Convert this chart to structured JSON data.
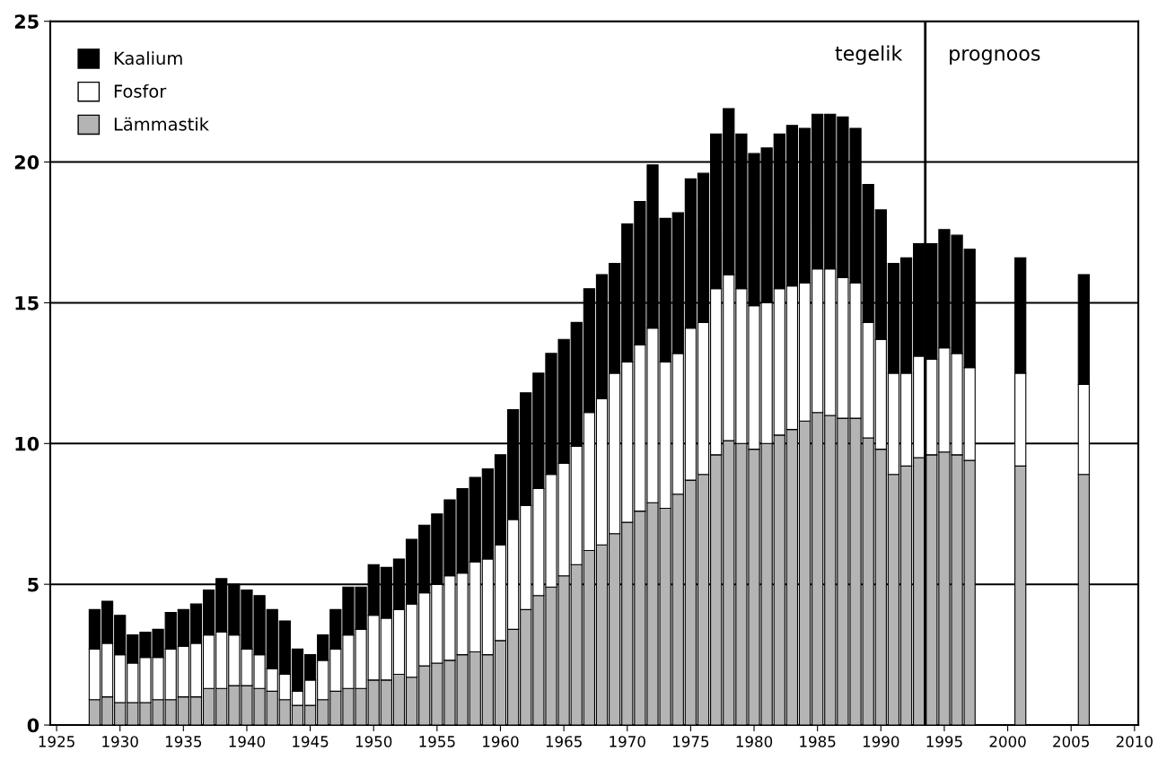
{
  "chart_data": {
    "type": "bar",
    "stacked": true,
    "x": [
      1928,
      1929,
      1930,
      1931,
      1932,
      1933,
      1934,
      1935,
      1936,
      1937,
      1938,
      1939,
      1940,
      1941,
      1942,
      1943,
      1944,
      1945,
      1946,
      1947,
      1948,
      1949,
      1950,
      1951,
      1952,
      1953,
      1954,
      1955,
      1956,
      1957,
      1958,
      1959,
      1960,
      1961,
      1962,
      1963,
      1964,
      1965,
      1966,
      1967,
      1968,
      1969,
      1970,
      1971,
      1972,
      1973,
      1974,
      1975,
      1976,
      1977,
      1978,
      1979,
      1980,
      1981,
      1982,
      1983,
      1984,
      1985,
      1986,
      1987,
      1988,
      1989,
      1990,
      1991,
      1992,
      1993,
      1994,
      1995,
      1996,
      1997,
      2001,
      2006
    ],
    "series": [
      {
        "name": "Lämmastik",
        "color": "#b4b4b4",
        "values": [
          0.9,
          1.0,
          0.8,
          0.8,
          0.8,
          0.9,
          0.9,
          1.0,
          1.0,
          1.3,
          1.3,
          1.4,
          1.4,
          1.3,
          1.2,
          0.9,
          0.7,
          0.7,
          0.9,
          1.2,
          1.3,
          1.3,
          1.6,
          1.6,
          1.8,
          1.7,
          2.1,
          2.2,
          2.3,
          2.5,
          2.6,
          2.5,
          3.0,
          3.4,
          4.1,
          4.6,
          4.9,
          5.3,
          5.7,
          6.2,
          6.4,
          6.8,
          7.2,
          7.6,
          7.9,
          7.7,
          8.2,
          8.7,
          8.9,
          9.6,
          10.1,
          10.0,
          9.8,
          10.0,
          10.3,
          10.5,
          10.8,
          11.1,
          11.0,
          10.9,
          10.9,
          10.2,
          9.8,
          8.9,
          9.2,
          9.5,
          9.6,
          9.7,
          9.6,
          9.4,
          9.2,
          8.9
        ]
      },
      {
        "name": "Fosfor",
        "color": "#ffffff",
        "values": [
          1.8,
          1.9,
          1.7,
          1.4,
          1.6,
          1.5,
          1.8,
          1.8,
          1.9,
          1.9,
          2.0,
          1.8,
          1.3,
          1.2,
          0.8,
          0.9,
          0.5,
          0.9,
          1.4,
          1.5,
          1.9,
          2.1,
          2.3,
          2.2,
          2.3,
          2.6,
          2.6,
          2.8,
          3.0,
          2.9,
          3.2,
          3.4,
          3.4,
          3.9,
          3.7,
          3.8,
          4.0,
          4.0,
          4.2,
          4.9,
          5.2,
          5.7,
          5.7,
          5.9,
          6.2,
          5.2,
          5.0,
          5.4,
          5.4,
          5.9,
          5.9,
          5.5,
          5.1,
          5.0,
          5.2,
          5.1,
          4.9,
          5.1,
          5.2,
          5.0,
          4.8,
          4.1,
          3.9,
          3.6,
          3.3,
          3.6,
          3.4,
          3.7,
          3.6,
          3.3,
          3.3,
          3.2
        ]
      },
      {
        "name": "Kaalium",
        "color": "#000000",
        "values": [
          1.4,
          1.5,
          1.4,
          1.0,
          0.9,
          1.0,
          1.3,
          1.3,
          1.4,
          1.6,
          1.9,
          1.8,
          2.1,
          2.1,
          2.1,
          1.9,
          1.5,
          0.9,
          0.9,
          1.4,
          1.7,
          1.5,
          1.8,
          1.8,
          1.8,
          2.3,
          2.4,
          2.5,
          2.7,
          3.0,
          3.0,
          3.2,
          3.2,
          3.9,
          4.0,
          4.1,
          4.3,
          4.4,
          4.4,
          4.4,
          4.4,
          3.9,
          4.9,
          5.1,
          5.8,
          5.1,
          5.0,
          5.3,
          5.3,
          5.5,
          5.9,
          5.5,
          5.4,
          5.5,
          5.5,
          5.7,
          5.5,
          5.5,
          5.5,
          5.7,
          5.5,
          4.9,
          4.6,
          3.9,
          4.1,
          4.0,
          4.1,
          4.2,
          4.2,
          4.2,
          4.1,
          3.9
        ]
      }
    ],
    "xlim": [
      1924.5,
      2010.3
    ],
    "xticks": [
      1925,
      1930,
      1935,
      1940,
      1945,
      1950,
      1955,
      1960,
      1965,
      1970,
      1975,
      1980,
      1985,
      1990,
      1995,
      2000,
      2005,
      2010
    ],
    "ylim": [
      0,
      25
    ],
    "yticks": [
      0,
      5,
      10,
      15,
      20,
      25
    ],
    "grid": "y",
    "legend": "top left",
    "ref_lines": [
      {
        "axis": "x",
        "value": 1993.5,
        "color": "#000000"
      }
    ],
    "annotations": [
      "tegelik",
      "prognoos"
    ]
  }
}
